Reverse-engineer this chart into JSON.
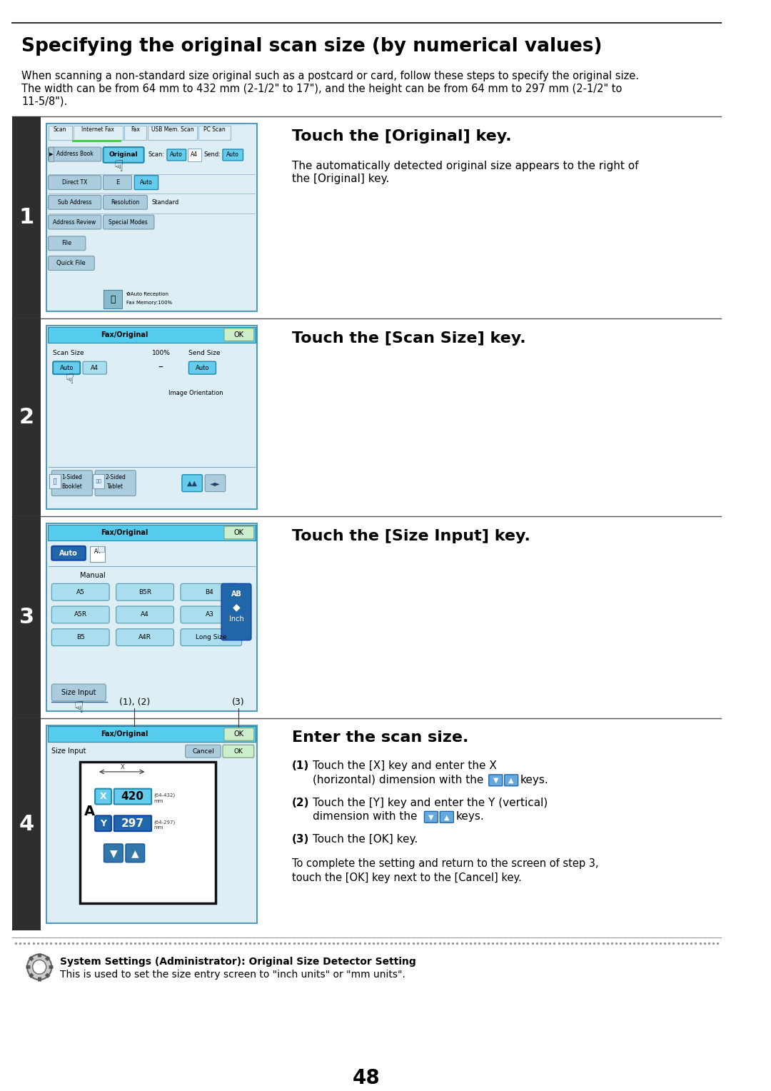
{
  "title": "Specifying the original scan size (by numerical values)",
  "intro_line1": "When scanning a non-standard size original such as a postcard or card, follow these steps to specify the original size.",
  "intro_line2": "The width can be from 64 mm to 432 mm (2-1/2\" to 17\"), and the height can be from 64 mm to 297 mm (2-1/2\" to",
  "intro_line3": "11-5/8\").",
  "page_number": "48",
  "bg_color": "#ffffff",
  "step_bg": "#2e2e2e",
  "cyan_header": "#55ccee",
  "cyan_btn": "#88ddee",
  "dark_btn": "#3377aa",
  "light_btn": "#aaddee",
  "grey_btn": "#bbccdd",
  "ok_btn": "#bbddbb",
  "step1_title": "Touch the [Original] key.",
  "step1_desc1": "The automatically detected original size appears to the right of",
  "step1_desc2": "the [Original] key.",
  "step2_title": "Touch the [Scan Size] key.",
  "step3_title": "Touch the [Size Input] key.",
  "step4_title": "Enter the scan size.",
  "step4_1a": "(1)  Touch the [X] key and enter the X",
  "step4_1b": "      (horizontal) dimension with the          keys.",
  "step4_2a": "(2)  Touch the [Y] key and enter the Y (vertical)",
  "step4_2b": "      dimension with the          keys.",
  "step4_3": "(3)  Touch the [OK] key.",
  "step4_sub1": "To complete the setting and return to the screen of step 3,",
  "step4_sub2": "touch the [OK] key next to the [Cancel] key.",
  "footer_bold": "System Settings (Administrator): Original Size Detector Setting",
  "footer_normal": "This is used to set the size entry screen to \"inch units\" or \"mm units\"."
}
